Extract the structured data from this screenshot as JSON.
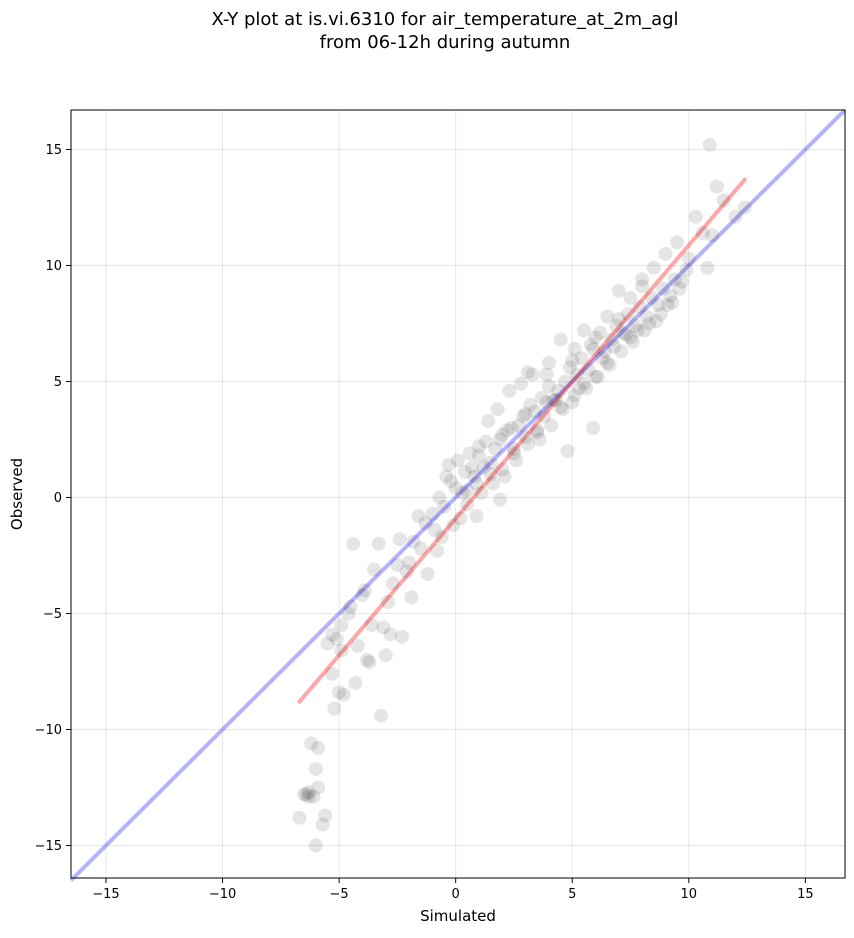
{
  "chart_data": {
    "type": "scatter",
    "title_line1": "X-Y plot at is.vi.6310 for air_temperature_at_2m_agl",
    "title_line2": "from 06-12h during autumn",
    "xlabel": "Simulated",
    "ylabel": "Observed",
    "xlim": [
      -16.5,
      16.7
    ],
    "ylim": [
      -16.4,
      16.7
    ],
    "xticks": [
      -15,
      -10,
      -5,
      0,
      5,
      10,
      15
    ],
    "yticks": [
      -15,
      -10,
      -5,
      0,
      5,
      10,
      15
    ],
    "xtick_labels": [
      "−15",
      "−10",
      "−5",
      "0",
      "5",
      "10",
      "15"
    ],
    "ytick_labels": [
      "−15",
      "−10",
      "−5",
      "0",
      "5",
      "10",
      "15"
    ],
    "grid": true,
    "scatter_color": "#000000",
    "scatter_alpha": 0.1,
    "points_x": [
      -6.7,
      -6.5,
      -6.3,
      -6.1,
      -6.2,
      -6.0,
      -6.4,
      -5.9,
      -6.0,
      -5.7,
      -5.6,
      -5.9,
      -6.3,
      -5.5,
      -5.3,
      -5.0,
      -5.2,
      -4.9,
      -5.1,
      -4.8,
      -4.6,
      -4.9,
      -5.3,
      -4.5,
      -4.2,
      -4.3,
      -3.9,
      -3.8,
      -3.6,
      -4.0,
      -3.5,
      -3.3,
      -3.0,
      -3.7,
      -3.2,
      -2.9,
      -2.7,
      -2.5,
      -2.4,
      -2.8,
      -2.3,
      -2.0,
      -1.8,
      -2.1,
      -1.6,
      -1.5,
      -1.2,
      -1.0,
      -0.9,
      -1.3,
      -0.7,
      -0.5,
      -0.3,
      -0.6,
      -0.2,
      -0.1,
      0.0,
      0.1,
      0.3,
      0.4,
      0.6,
      0.5,
      0.8,
      1.0,
      0.9,
      1.2,
      1.3,
      1.5,
      1.4,
      1.7,
      1.9,
      2.0,
      2.2,
      1.8,
      2.4,
      2.5,
      2.7,
      2.3,
      2.9,
      3.0,
      3.2,
      3.1,
      3.4,
      3.5,
      3.7,
      3.3,
      3.9,
      4.0,
      4.2,
      3.8,
      4.4,
      4.5,
      4.7,
      4.3,
      4.9,
      5.0,
      5.2,
      5.1,
      5.4,
      5.5,
      5.7,
      5.3,
      5.9,
      6.0,
      6.2,
      5.8,
      6.4,
      6.5,
      6.7,
      6.3,
      6.9,
      7.0,
      7.2,
      6.8,
      7.4,
      7.5,
      7.7,
      7.3,
      7.9,
      8.0,
      8.2,
      7.8,
      8.4,
      8.5,
      8.7,
      8.3,
      8.9,
      9.0,
      9.2,
      8.8,
      9.4,
      9.5,
      9.7,
      9.3,
      9.9,
      10.0,
      10.3,
      10.6,
      10.9,
      11.2,
      11.5,
      12.0,
      12.4,
      10.8,
      11.0,
      1.0,
      2.0,
      3.0,
      4.0,
      5.0,
      6.0,
      7.0,
      8.0,
      0.5,
      1.5,
      2.5,
      3.5,
      4.5,
      5.5,
      6.5,
      7.5,
      0.2,
      1.1,
      2.1,
      3.1,
      4.1,
      5.1,
      6.1,
      7.1,
      8.1,
      -0.4,
      0.7,
      1.6,
      2.6,
      3.6,
      4.6,
      5.6,
      6.6,
      7.6,
      8.6,
      9.1,
      9.6,
      4.8,
      5.9,
      3.9,
      2.8,
      1.9,
      0.9,
      -0.8,
      -1.9,
      -3.1,
      -4.4
    ],
    "points_y": [
      -13.8,
      -12.8,
      -12.7,
      -12.9,
      -10.6,
      -11.7,
      -12.8,
      -12.5,
      -15.0,
      -14.1,
      -13.7,
      -10.8,
      -12.9,
      -6.3,
      -7.6,
      -8.4,
      -9.1,
      -5.5,
      -6.1,
      -8.5,
      -5.0,
      -6.6,
      -5.9,
      -4.7,
      -6.4,
      -8.0,
      -4.0,
      -7.0,
      -5.5,
      -4.2,
      -3.1,
      -2.0,
      -6.8,
      -7.1,
      -9.4,
      -4.5,
      -3.7,
      -2.9,
      -1.8,
      -5.9,
      -6.0,
      -2.8,
      -1.9,
      -3.2,
      -0.8,
      -2.2,
      -3.3,
      -0.7,
      -1.4,
      -1.1,
      0.0,
      -0.4,
      1.4,
      -1.7,
      0.7,
      -1.2,
      0.4,
      1.6,
      0.2,
      1.1,
      1.9,
      -0.3,
      0.9,
      2.2,
      0.6,
      1.3,
      2.4,
      1.5,
      3.3,
      2.1,
      2.5,
      1.2,
      2.9,
      3.8,
      3.0,
      2.1,
      3.1,
      4.6,
      3.5,
      2.6,
      4.0,
      5.4,
      3.7,
      2.8,
      4.3,
      5.3,
      4.1,
      5.8,
      4.2,
      3.5,
      4.6,
      6.8,
      5.0,
      4.2,
      5.6,
      4.1,
      5.3,
      6.4,
      6.0,
      7.2,
      5.5,
      4.7,
      6.4,
      5.2,
      7.1,
      6.6,
      6.3,
      7.8,
      6.8,
      6.0,
      7.4,
      8.9,
      7.1,
      6.5,
      7.9,
      8.6,
      7.4,
      7.0,
      8.2,
      9.4,
      7.8,
      7.2,
      8.6,
      9.9,
      8.3,
      7.5,
      9.0,
      10.5,
      8.7,
      7.9,
      9.4,
      11.0,
      9.3,
      8.4,
      9.8,
      10.3,
      12.1,
      11.4,
      15.2,
      13.4,
      12.8,
      12.1,
      12.5,
      9.9,
      11.3,
      1.8,
      2.7,
      3.6,
      4.8,
      5.9,
      6.9,
      7.7,
      9.1,
      0.3,
      1.0,
      1.9,
      2.9,
      3.9,
      4.9,
      5.8,
      6.9,
      -0.9,
      0.2,
      0.9,
      2.3,
      3.1,
      4.4,
      5.2,
      6.3,
      7.2,
      0.9,
      1.3,
      0.6,
      1.6,
      2.5,
      3.8,
      4.7,
      5.7,
      6.7,
      7.6,
      8.3,
      9.0,
      2.0,
      3.0,
      5.3,
      4.9,
      -0.1,
      -0.8,
      -2.3,
      -4.3,
      -5.6,
      -2.0
    ],
    "identity_line": {
      "x": [
        -16.5,
        16.7
      ],
      "y": [
        -16.5,
        16.7
      ],
      "color": "#0000ff",
      "alpha": 0.3
    },
    "fit_line": {
      "x": [
        -6.7,
        12.4
      ],
      "y": [
        -8.8,
        13.7
      ],
      "color": "#ff0000",
      "alpha": 0.35
    }
  }
}
